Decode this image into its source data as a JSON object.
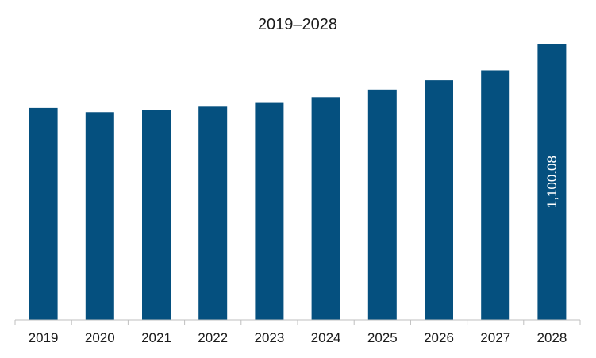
{
  "chart_data": {
    "type": "bar",
    "title": "2019–2028",
    "categories": [
      "2019",
      "2020",
      "2021",
      "2022",
      "2023",
      "2024",
      "2025",
      "2026",
      "2027",
      "2028"
    ],
    "values": [
      845,
      828,
      838,
      850,
      865,
      888,
      918,
      955,
      995,
      1100.08
    ],
    "data_labels": [
      "",
      "",
      "",
      "",
      "",
      "",
      "",
      "",
      "",
      "1,100.08"
    ],
    "bar_color": "#05507f",
    "ylim": [
      0,
      1180
    ],
    "grid": false,
    "legend": "none"
  }
}
